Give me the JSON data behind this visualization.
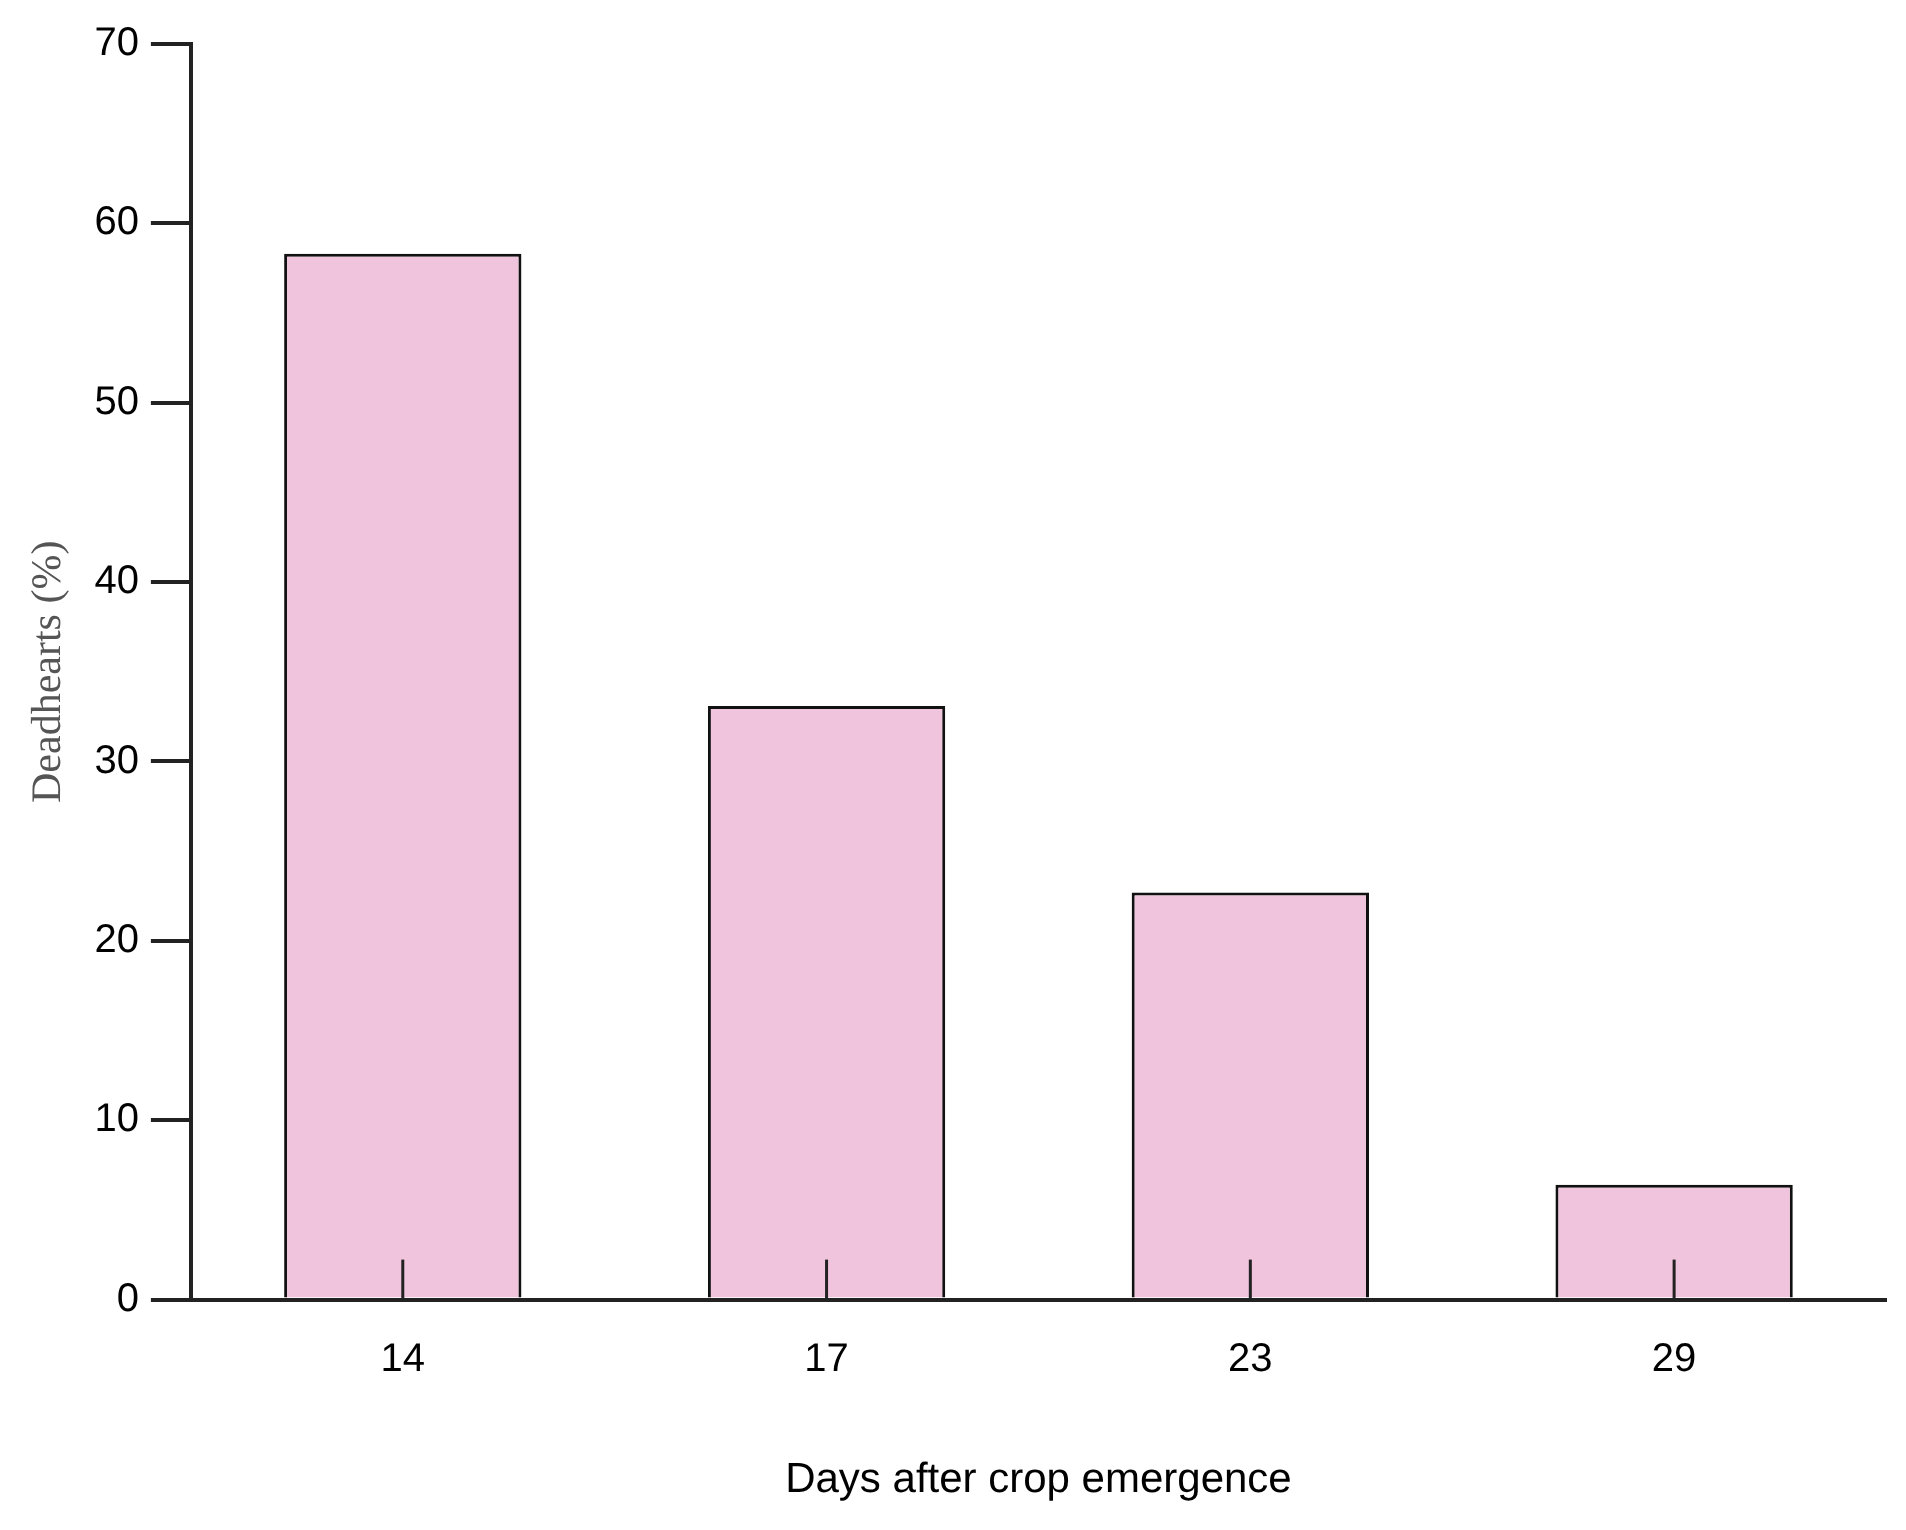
{
  "chart_data": {
    "type": "bar",
    "xlabel": "Days after crop emergence",
    "ylabel": "Deadhearts (%)",
    "categories": [
      "14",
      "17",
      "23",
      "29"
    ],
    "values": [
      58.3,
      33.1,
      22.7,
      6.4
    ],
    "color": "#f0c4dc",
    "ylim": [
      0,
      70
    ],
    "yticks": [
      0,
      10,
      20,
      30,
      40,
      50,
      60,
      70
    ],
    "grid": false,
    "legend": false
  }
}
